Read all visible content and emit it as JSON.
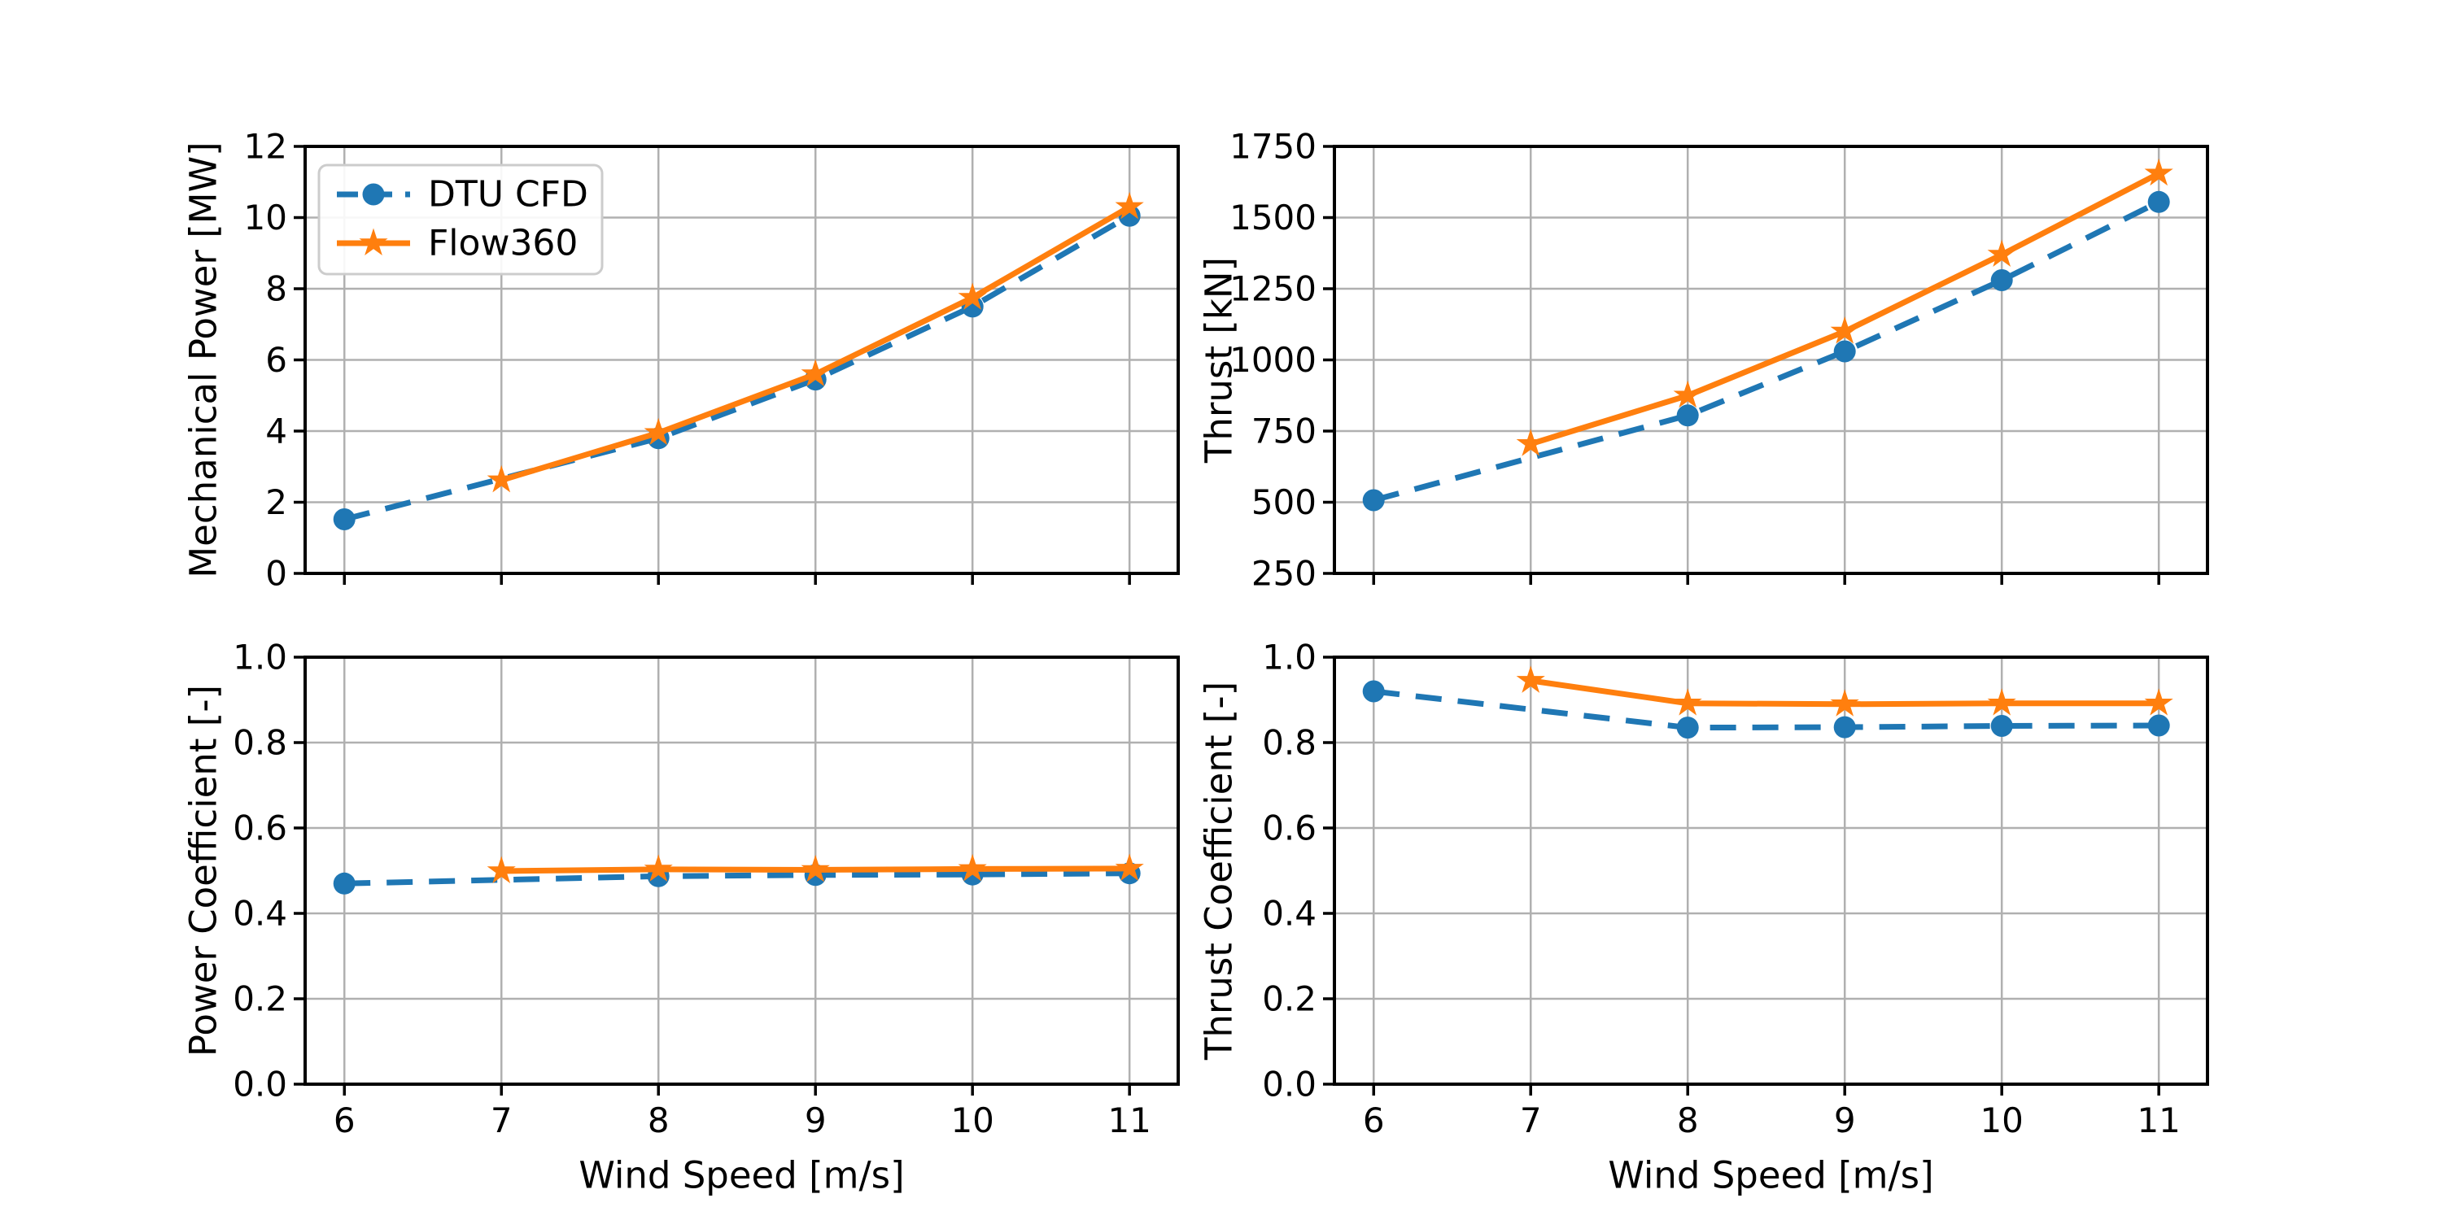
{
  "figure": {
    "background": "#ffffff",
    "rows": 2,
    "cols": 2
  },
  "colors": {
    "dtu_cfd": "#1f77b4",
    "flow360": "#ff7f0e",
    "grid": "#b0b0b0",
    "spine": "#000000",
    "tick_label": "#000000",
    "legend_edge": "#cccccc",
    "legend_fill": "#ffffff"
  },
  "legend": {
    "location": "upper-left-of-first-subplot",
    "items": [
      {
        "label": "DTU CFD",
        "series_key": "dtu_cfd",
        "line_style": "dashed",
        "marker": "circle"
      },
      {
        "label": "Flow360",
        "series_key": "flow360",
        "line_style": "solid",
        "marker": "star"
      }
    ]
  },
  "chart_data": [
    {
      "type": "line",
      "subplot": "top-left",
      "title": "",
      "xlabel": "",
      "ylabel": "Mechanical Power [MW]",
      "x_tick_labels_visible": false,
      "grid": true,
      "xlim": [
        5.75,
        11.31
      ],
      "ylim": [
        0,
        12
      ],
      "xticks": [
        "6",
        "7",
        "8",
        "9",
        "10",
        "11"
      ],
      "yticks": [
        "0",
        "2",
        "4",
        "6",
        "8",
        "10",
        "12"
      ],
      "legend_visible": true,
      "series": [
        {
          "name": "DTU CFD",
          "key": "dtu_cfd",
          "x": [
            6,
            8,
            9,
            10,
            11
          ],
          "y": [
            1.52,
            3.8,
            5.45,
            7.5,
            10.05
          ]
        },
        {
          "name": "Flow360",
          "key": "flow360",
          "x": [
            7,
            8,
            9,
            10,
            11
          ],
          "y": [
            2.62,
            3.95,
            5.6,
            7.75,
            10.3
          ]
        }
      ]
    },
    {
      "type": "line",
      "subplot": "top-right",
      "title": "",
      "xlabel": "",
      "ylabel": "Thrust [kN]",
      "x_tick_labels_visible": false,
      "grid": true,
      "xlim": [
        5.75,
        11.31
      ],
      "ylim": [
        250,
        1750
      ],
      "xticks": [
        "6",
        "7",
        "8",
        "9",
        "10",
        "11"
      ],
      "yticks": [
        "250",
        "500",
        "750",
        "1000",
        "1250",
        "1500",
        "1750"
      ],
      "legend_visible": false,
      "series": [
        {
          "name": "DTU CFD",
          "key": "dtu_cfd",
          "x": [
            6,
            8,
            9,
            10,
            11
          ],
          "y": [
            507,
            805,
            1030,
            1280,
            1555
          ]
        },
        {
          "name": "Flow360",
          "key": "flow360",
          "x": [
            7,
            8,
            9,
            10,
            11
          ],
          "y": [
            705,
            875,
            1100,
            1370,
            1655
          ]
        }
      ]
    },
    {
      "type": "line",
      "subplot": "bottom-left",
      "title": "",
      "xlabel": "Wind Speed [m/s]",
      "ylabel": "Power Coefficient [-]",
      "x_tick_labels_visible": true,
      "grid": true,
      "xlim": [
        5.75,
        11.31
      ],
      "ylim": [
        0,
        1
      ],
      "xticks": [
        "6",
        "7",
        "8",
        "9",
        "10",
        "11"
      ],
      "yticks": [
        "0.0",
        "0.2",
        "0.4",
        "0.6",
        "0.8",
        "1.0"
      ],
      "legend_visible": false,
      "series": [
        {
          "name": "DTU CFD",
          "key": "dtu_cfd",
          "x": [
            6,
            8,
            9,
            10,
            11
          ],
          "y": [
            0.47,
            0.487,
            0.49,
            0.491,
            0.494
          ]
        },
        {
          "name": "Flow360",
          "key": "flow360",
          "x": [
            7,
            8,
            9,
            10,
            11
          ],
          "y": [
            0.499,
            0.503,
            0.502,
            0.504,
            0.505
          ]
        }
      ]
    },
    {
      "type": "line",
      "subplot": "bottom-right",
      "title": "",
      "xlabel": "Wind Speed [m/s]",
      "ylabel": "Thrust Coefficient [-]",
      "x_tick_labels_visible": true,
      "grid": true,
      "xlim": [
        5.75,
        11.31
      ],
      "ylim": [
        0,
        1
      ],
      "xticks": [
        "6",
        "7",
        "8",
        "9",
        "10",
        "11"
      ],
      "yticks": [
        "0.0",
        "0.2",
        "0.4",
        "0.6",
        "0.8",
        "1.0"
      ],
      "legend_visible": false,
      "series": [
        {
          "name": "DTU CFD",
          "key": "dtu_cfd",
          "x": [
            6,
            8,
            9,
            10,
            11
          ],
          "y": [
            0.92,
            0.835,
            0.836,
            0.839,
            0.84
          ]
        },
        {
          "name": "Flow360",
          "key": "flow360",
          "x": [
            7,
            8,
            9,
            10,
            11
          ],
          "y": [
            0.945,
            0.892,
            0.89,
            0.892,
            0.892
          ]
        }
      ]
    }
  ]
}
